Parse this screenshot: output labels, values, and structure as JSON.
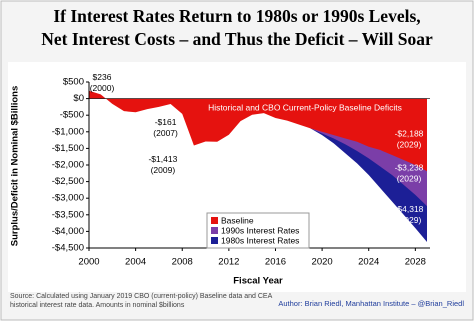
{
  "chart_data": {
    "type": "area",
    "title": "If Interest Rates Return to 1980s or 1990s Levels,",
    "subtitle": "Net Interest Costs – and Thus the Deficit – Will Soar",
    "x_label": "Fiscal Year",
    "y_label": "Surplus/Deficit in Nominal $Billions",
    "annotation": "Historical and CBO Current-Policy Baseline Deficits",
    "source": "Source: Calculated using January 2019 CBO (current-policy) Baseline data and CEA historical interest rate data. Amounts in nominal $billions",
    "author": "Author: Brian Riedl, Manhattan Institute – @Brian_Riedl",
    "x": [
      2000,
      2001,
      2002,
      2003,
      2004,
      2005,
      2006,
      2007,
      2008,
      2009,
      2010,
      2011,
      2012,
      2013,
      2014,
      2015,
      2016,
      2017,
      2018,
      2019,
      2020,
      2021,
      2022,
      2023,
      2024,
      2025,
      2026,
      2027,
      2028,
      2029
    ],
    "xlim": [
      2000,
      2029
    ],
    "xticks": [
      2000,
      2004,
      2008,
      2012,
      2016,
      2020,
      2024,
      2028
    ],
    "ylim": [
      -4500,
      500
    ],
    "yticks": [
      {
        "value": 500,
        "label": "$500"
      },
      {
        "value": 0,
        "label": "$0"
      },
      {
        "value": -500,
        "label": "-$500"
      },
      {
        "value": -1000,
        "label": "-$1,000"
      },
      {
        "value": -1500,
        "label": "-$1,500"
      },
      {
        "value": -2000,
        "label": "-$2,000"
      },
      {
        "value": -2500,
        "label": "-$2,500"
      },
      {
        "value": -3000,
        "label": "-$3,000"
      },
      {
        "value": -3500,
        "label": "-$3,500"
      },
      {
        "value": -4000,
        "label": "-$4,000"
      },
      {
        "value": -4500,
        "label": "-$4,500"
      }
    ],
    "legend": "lower center",
    "series": [
      {
        "name": "Baseline",
        "color": "#e5120f",
        "values": [
          236,
          128,
          -158,
          -378,
          -413,
          -318,
          -248,
          -161,
          -459,
          -1413,
          -1294,
          -1300,
          -1087,
          -680,
          -485,
          -438,
          -585,
          -665,
          -779,
          -896,
          -1000,
          -1100,
          -1200,
          -1300,
          -1450,
          -1550,
          -1700,
          -1850,
          -2000,
          -2188
        ],
        "value_labels": [
          "$236",
          null,
          null,
          null,
          null,
          null,
          null,
          "-$161",
          null,
          "-$1,413",
          null,
          null,
          null,
          null,
          null,
          null,
          null,
          null,
          null,
          null,
          null,
          null,
          null,
          null,
          null,
          null,
          null,
          null,
          null,
          "-$2,188"
        ],
        "value_label_years": [
          "(2000)",
          null,
          null,
          null,
          null,
          null,
          null,
          "(2007)",
          null,
          "(2009)",
          null,
          null,
          null,
          null,
          null,
          null,
          null,
          null,
          null,
          null,
          null,
          null,
          null,
          null,
          null,
          null,
          null,
          null,
          null,
          "(2029)"
        ]
      },
      {
        "name": "1990s Interest Rates",
        "color": "#7b3ea8",
        "values": [
          null,
          null,
          null,
          null,
          null,
          null,
          null,
          null,
          null,
          null,
          null,
          null,
          null,
          null,
          null,
          null,
          null,
          null,
          null,
          -896,
          -1050,
          -1200,
          -1380,
          -1580,
          -1800,
          -2050,
          -2300,
          -2600,
          -2900,
          -3238
        ],
        "value_labels": [
          null,
          null,
          null,
          null,
          null,
          null,
          null,
          null,
          null,
          null,
          null,
          null,
          null,
          null,
          null,
          null,
          null,
          null,
          null,
          null,
          null,
          null,
          null,
          null,
          null,
          null,
          null,
          null,
          null,
          "-$3,238"
        ],
        "value_label_years": [
          null,
          null,
          null,
          null,
          null,
          null,
          null,
          null,
          null,
          null,
          null,
          null,
          null,
          null,
          null,
          null,
          null,
          null,
          null,
          null,
          null,
          null,
          null,
          null,
          null,
          null,
          null,
          null,
          null,
          "(2029)"
        ]
      },
      {
        "name": "1980s Interest Rates",
        "color": "#1c1f96",
        "values": [
          null,
          null,
          null,
          null,
          null,
          null,
          null,
          null,
          null,
          null,
          null,
          null,
          null,
          null,
          null,
          null,
          null,
          null,
          null,
          -896,
          -1100,
          -1350,
          -1650,
          -1950,
          -2300,
          -2700,
          -3100,
          -3500,
          -3900,
          -4318
        ],
        "value_labels": [
          null,
          null,
          null,
          null,
          null,
          null,
          null,
          null,
          null,
          null,
          null,
          null,
          null,
          null,
          null,
          null,
          null,
          null,
          null,
          null,
          null,
          null,
          null,
          null,
          null,
          null,
          null,
          null,
          null,
          "-$4,318"
        ],
        "value_label_years": [
          null,
          null,
          null,
          null,
          null,
          null,
          null,
          null,
          null,
          null,
          null,
          null,
          null,
          null,
          null,
          null,
          null,
          null,
          null,
          null,
          null,
          null,
          null,
          null,
          null,
          null,
          null,
          null,
          null,
          "(2029)"
        ]
      }
    ]
  }
}
